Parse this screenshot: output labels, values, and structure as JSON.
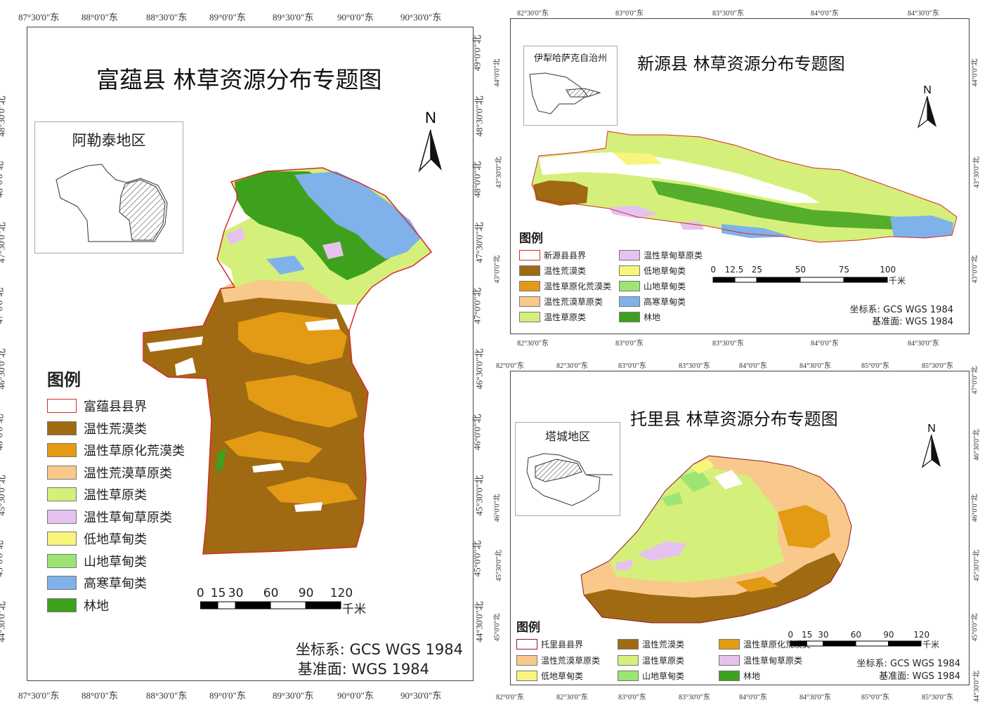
{
  "panels": {
    "fuyun": {
      "title": "富蕴县 林草资源分布专题图",
      "inset_label": "阿勒泰地区",
      "legend_title": "图例",
      "legend": [
        {
          "label": "富蕴县县界",
          "color": "#ffffff",
          "border": "#d62b2b"
        },
        {
          "label": "温性荒漠类",
          "color": "#a06a12"
        },
        {
          "label": "温性草原化荒漠类",
          "color": "#e39a14"
        },
        {
          "label": "温性荒漠草原类",
          "color": "#f8c98a"
        },
        {
          "label": "温性草原类",
          "color": "#d5f07a"
        },
        {
          "label": "温性草甸草原类",
          "color": "#e6c2ef"
        },
        {
          "label": "低地草甸类",
          "color": "#f8f57c"
        },
        {
          "label": "山地草甸类",
          "color": "#9ce574"
        },
        {
          "label": "高寒草甸类",
          "color": "#7fb2ea"
        },
        {
          "label": "林地",
          "color": "#3ea11d"
        }
      ],
      "scale_labels": [
        "0",
        "15",
        "30",
        "60",
        "90",
        "120"
      ],
      "scale_unit": "千米",
      "crs": "坐标系: GCS WGS 1984",
      "datum": "基准面: WGS 1984",
      "north": "N",
      "lon_ticks": [
        "87°30'0\"东",
        "88°0'0\"东",
        "88°30'0\"东",
        "89°0'0\"东",
        "89°30'0\"东",
        "90°0'0\"东",
        "90°30'0\"东"
      ],
      "lat_ticks": [
        "49°0'0\"北",
        "48°30'0\"北",
        "48°0'0\"北",
        "47°30'0\"北",
        "47°0'0\"北",
        "46°30'0\"北",
        "46°0'0\"北",
        "45°30'0\"北",
        "45°0'0\"北",
        "44°30'0\"北"
      ],
      "lat_ticks_left": [
        "48°30'0\"北",
        "48°0'0\"北",
        "47°30'0\"北",
        "47°0'0\"北",
        "46°30'0\"北",
        "46°0'0\"北",
        "45°30'0\"北",
        "45°0'0\"北",
        "44°30'0\"北"
      ]
    },
    "xinyuan": {
      "title": "新源县 林草资源分布专题图",
      "inset_label": "伊犁哈萨克自治州",
      "legend_title": "图例",
      "legend": [
        {
          "label": "新源县县界",
          "color": "#ffffff",
          "border": "#d62b2b"
        },
        {
          "label": "温性荒漠类",
          "color": "#a06a12"
        },
        {
          "label": "温性草原化荒漠类",
          "color": "#e39a14"
        },
        {
          "label": "温性荒漠草原类",
          "color": "#f8c98a"
        },
        {
          "label": "温性草原类",
          "color": "#d5f07a"
        },
        {
          "label": "温性草甸草原类",
          "color": "#e6c2ef"
        },
        {
          "label": "低地草甸类",
          "color": "#f8f57c"
        },
        {
          "label": "山地草甸类",
          "color": "#9ce574"
        },
        {
          "label": "高寒草甸类",
          "color": "#7fb2ea"
        },
        {
          "label": "林地",
          "color": "#3ea11d"
        }
      ],
      "scale_labels": [
        "0",
        "12.5",
        "25",
        "50",
        "75",
        "100"
      ],
      "scale_unit": "千米",
      "crs": "坐标系: GCS WGS 1984",
      "datum": "基准面: WGS 1984",
      "north": "N",
      "lon_ticks": [
        "82°30'0\"东",
        "83°0'0\"东",
        "83°30'0\"东",
        "84°0'0\"东",
        "84°30'0\"东"
      ],
      "lat_ticks": [
        "44°0'0\"北",
        "43°30'0\"北",
        "43°0'0\"北"
      ]
    },
    "tuoli": {
      "title": "托里县 林草资源分布专题图",
      "inset_label": "塔城地区",
      "legend_title": "图例",
      "legend": [
        {
          "label": "托里县县界",
          "color": "#ffffff",
          "border": "#8b1a2a"
        },
        {
          "label": "温性荒漠草原类",
          "color": "#f8c98a"
        },
        {
          "label": "低地草甸类",
          "color": "#f8f57c"
        },
        {
          "label": "温性荒漠类",
          "color": "#a06a12"
        },
        {
          "label": "温性草原类",
          "color": "#d5f07a"
        },
        {
          "label": "山地草甸类",
          "color": "#9ce574"
        },
        {
          "label": "温性草原化荒漠类",
          "color": "#e39a14"
        },
        {
          "label": "温性草甸草原类",
          "color": "#e6c2ef"
        },
        {
          "label": "林地",
          "color": "#3ea11d"
        }
      ],
      "scale_labels": [
        "0",
        "15",
        "30",
        "60",
        "90",
        "120"
      ],
      "scale_unit": "千米",
      "crs": "坐标系: GCS WGS 1984",
      "datum": "基准面: WGS 1984",
      "north": "N",
      "lon_ticks": [
        "82°0'0\"东",
        "82°30'0\"东",
        "83°0'0\"东",
        "83°30'0\"东",
        "84°0'0\"东",
        "84°30'0\"东",
        "85°0'0\"东",
        "85°30'0\"东"
      ],
      "lat_ticks": [
        "47°0'0\"北",
        "46°30'0\"北",
        "46°0'0\"北",
        "45°30'0\"北",
        "45°0'0\"北",
        "44°30'0\"北"
      ],
      "lat_ticks_left": [
        "46°0'0\"北",
        "45°30'0\"北",
        "45°0'0\"北"
      ]
    }
  }
}
